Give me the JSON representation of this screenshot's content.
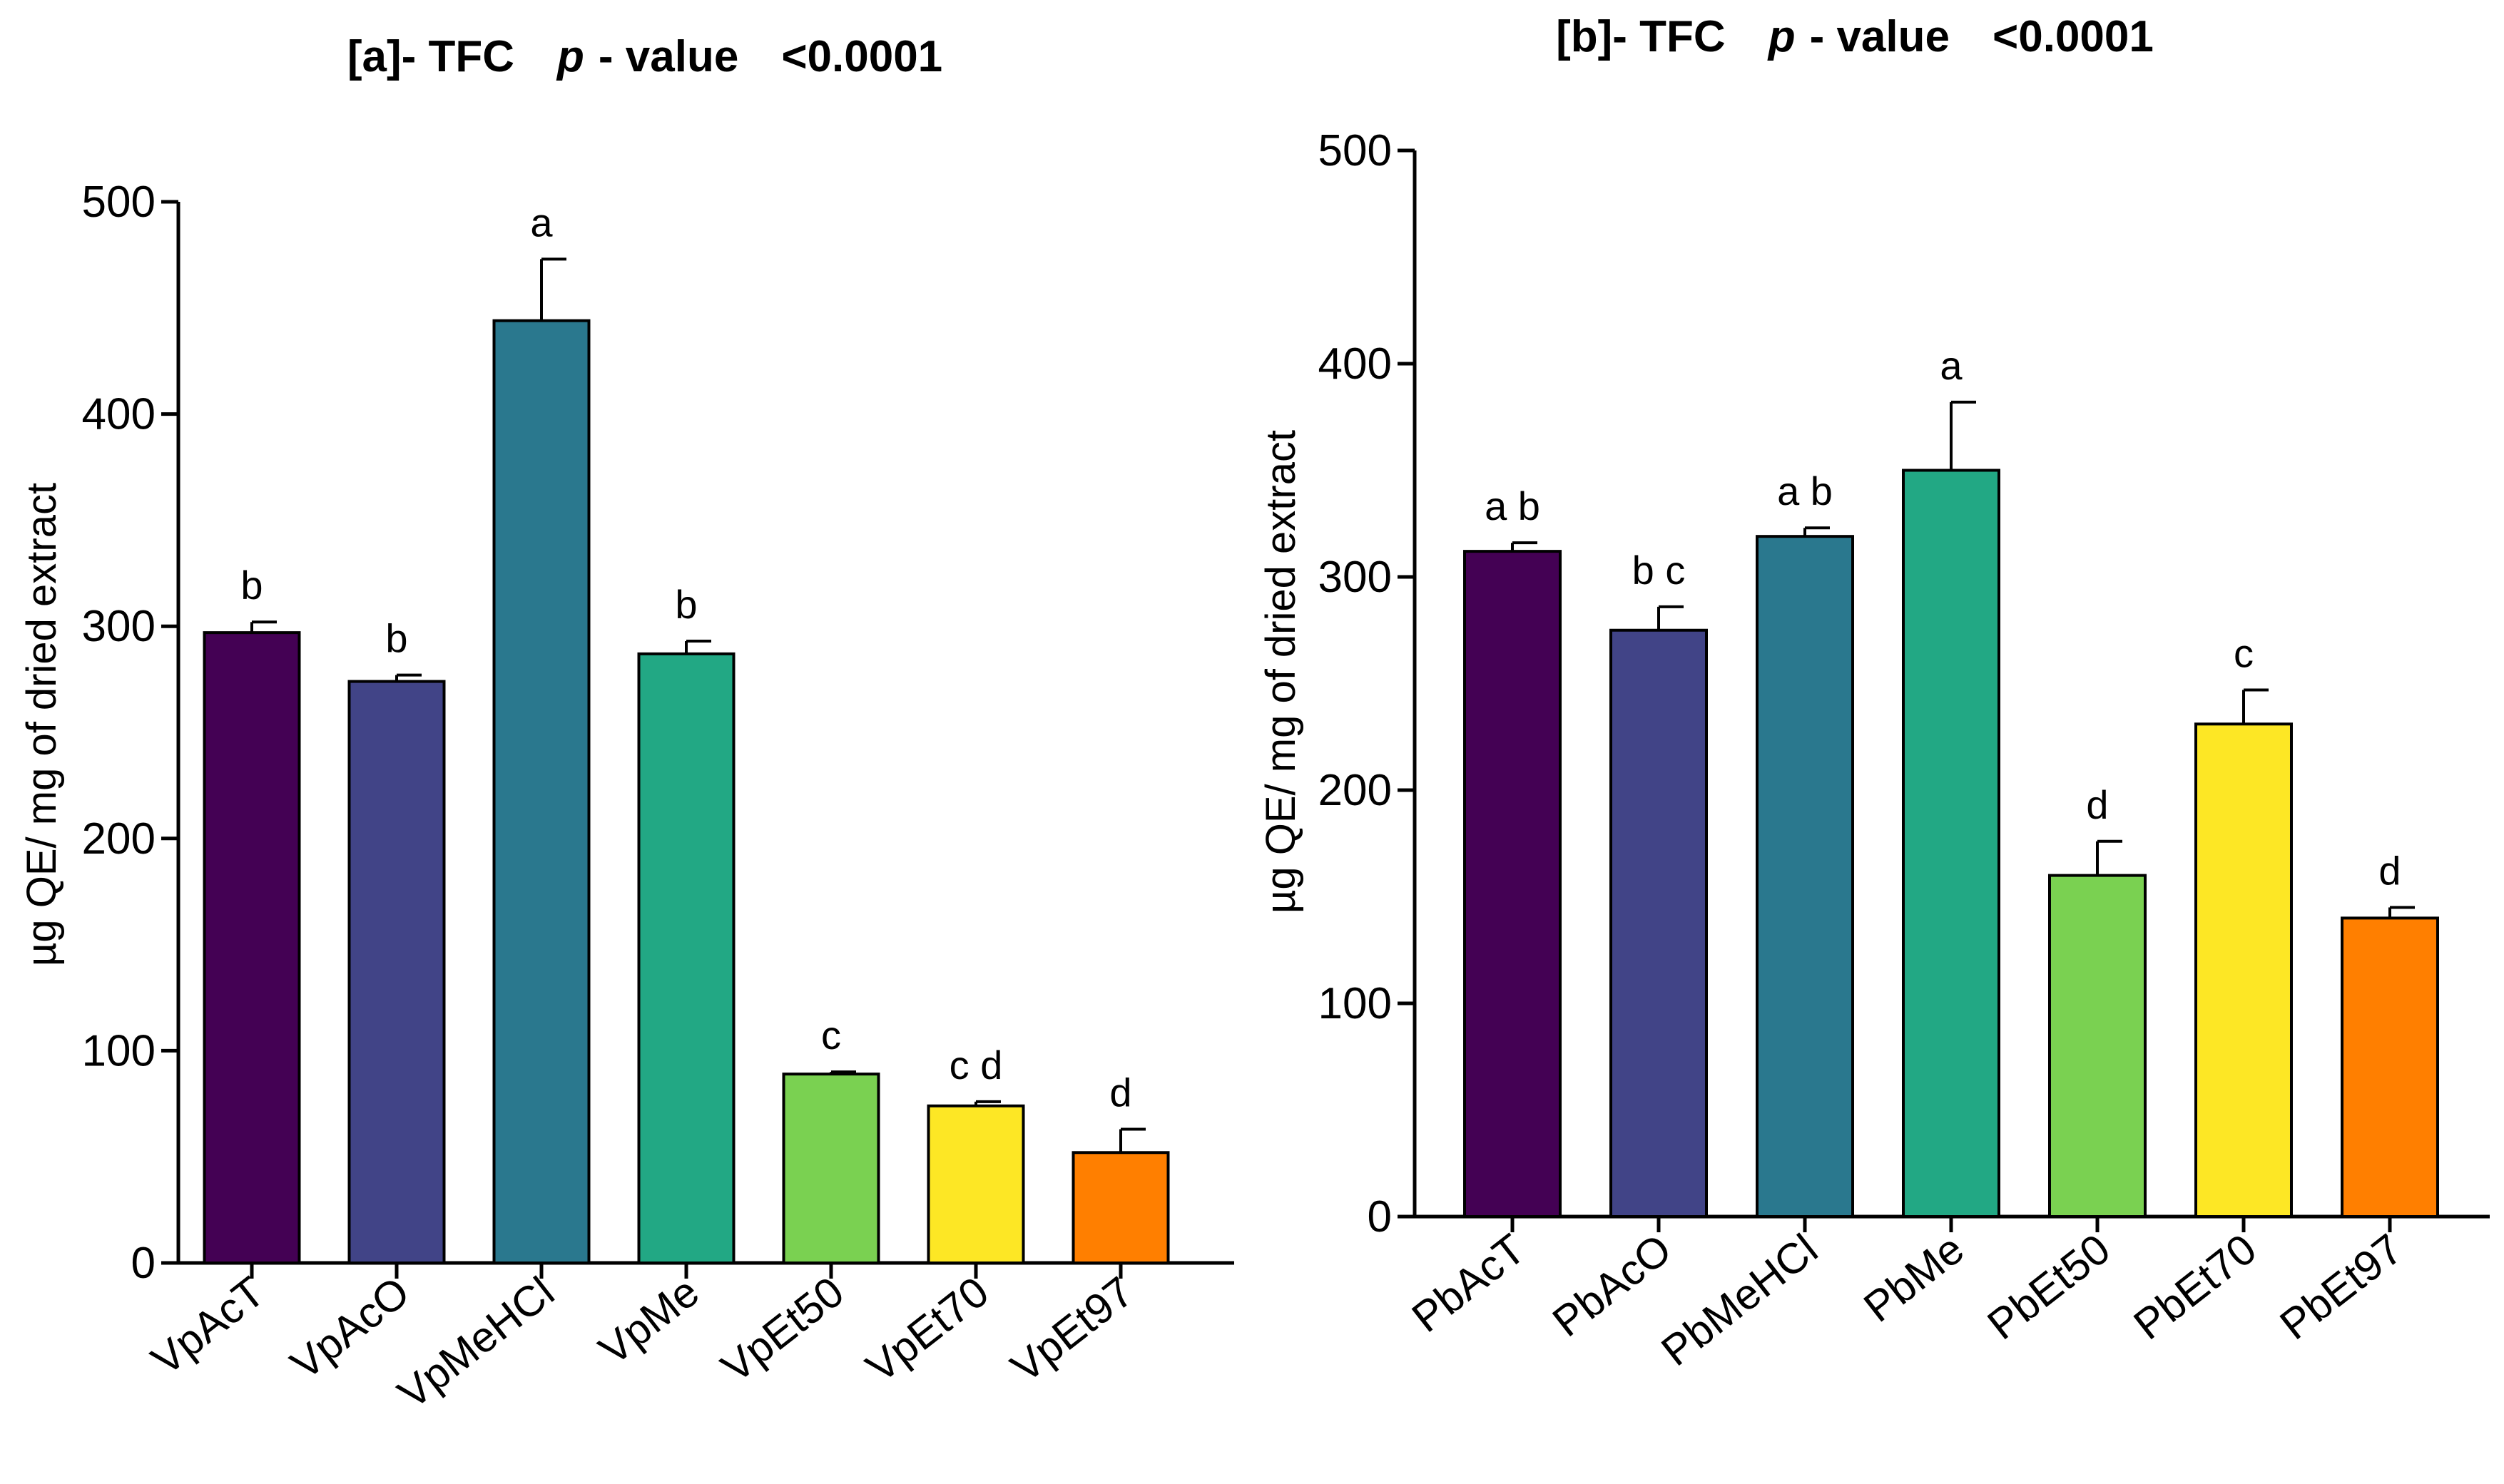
{
  "chart_data": [
    {
      "type": "bar",
      "panel": "[a]",
      "title": "[a]- TFC   p - value   <0.0001",
      "title_prefix": "[a]- TFC",
      "title_p": "p",
      "title_value": "- value",
      "title_threshold": "<0.0001",
      "ylabel": "µg QE/ mg of dried extract",
      "xlabel": "",
      "ylim": [
        0,
        500
      ],
      "yticks": [
        0,
        100,
        200,
        300,
        400,
        500
      ],
      "categories": [
        "VpAcT",
        "VpAcO",
        "VpMeHCl",
        "VpMe",
        "VpEt50",
        "VpEt70",
        "VpEt97"
      ],
      "values": [
        297,
        274,
        444,
        287,
        89,
        74,
        52
      ],
      "errors": [
        5,
        3,
        29,
        6,
        1,
        2,
        11
      ],
      "significance": [
        "b",
        "b",
        "a",
        "b",
        "c",
        "c d",
        "d"
      ],
      "colors": [
        "#440154",
        "#414487",
        "#2a788e",
        "#22a884",
        "#7ad151",
        "#fde725",
        "#ff7f00"
      ],
      "grid": false,
      "legend": "none"
    },
    {
      "type": "bar",
      "panel": "[b]",
      "title": "[b]- TFC   p - value   <0.0001",
      "title_prefix": "[b]- TFC",
      "title_p": "p",
      "title_value": "- value",
      "title_threshold": "<0.0001",
      "ylabel": "µg QE/ mg of dried extract",
      "xlabel": "",
      "ylim": [
        0,
        500
      ],
      "yticks": [
        0,
        100,
        200,
        300,
        400,
        500
      ],
      "categories": [
        "PbAcT",
        "PbAcO",
        "PbMeHCl",
        "PbMe",
        "PbEt50",
        "PbEt70",
        "PbEt97"
      ],
      "values": [
        312,
        275,
        319,
        350,
        160,
        231,
        140
      ],
      "errors": [
        4,
        11,
        4,
        32,
        16,
        16,
        5
      ],
      "significance": [
        "a b",
        "b c",
        "a b",
        "a",
        "d",
        "c",
        "d"
      ],
      "colors": [
        "#440154",
        "#414487",
        "#2a788e",
        "#22a884",
        "#7ad151",
        "#fde725",
        "#ff7f00"
      ],
      "grid": false,
      "legend": "none"
    }
  ]
}
